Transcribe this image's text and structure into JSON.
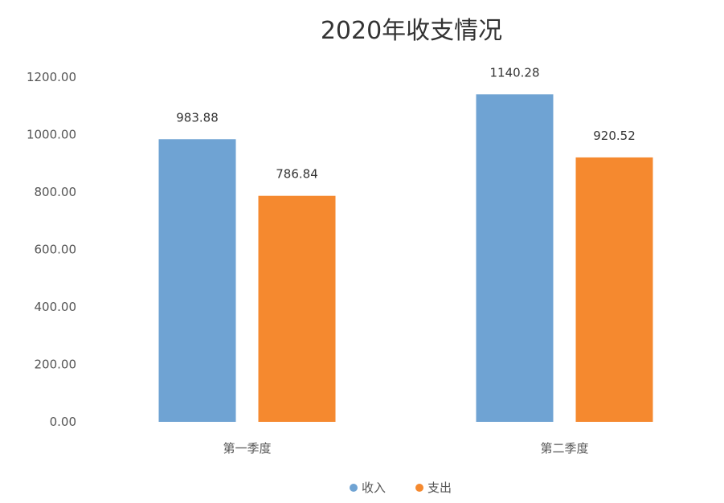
{
  "chart_data": {
    "type": "bar",
    "title": "2020年收支情况",
    "categories": [
      "第一季度",
      "第二季度"
    ],
    "series": [
      {
        "name": "收入",
        "values": [
          983.88,
          1140.28
        ],
        "color": "#6fa3d3"
      },
      {
        "name": "支出",
        "values": [
          786.84,
          920.52
        ],
        "color": "#f5892f"
      }
    ],
    "value_labels": [
      [
        "983.88",
        "786.84"
      ],
      [
        "1140.28",
        "920.52"
      ]
    ],
    "y_ticks": [
      "0.00",
      "200.00",
      "400.00",
      "600.00",
      "800.00",
      "1000.00",
      "1200.00"
    ],
    "ylim": [
      0,
      1200
    ],
    "grid": false,
    "legend": "bottom"
  }
}
